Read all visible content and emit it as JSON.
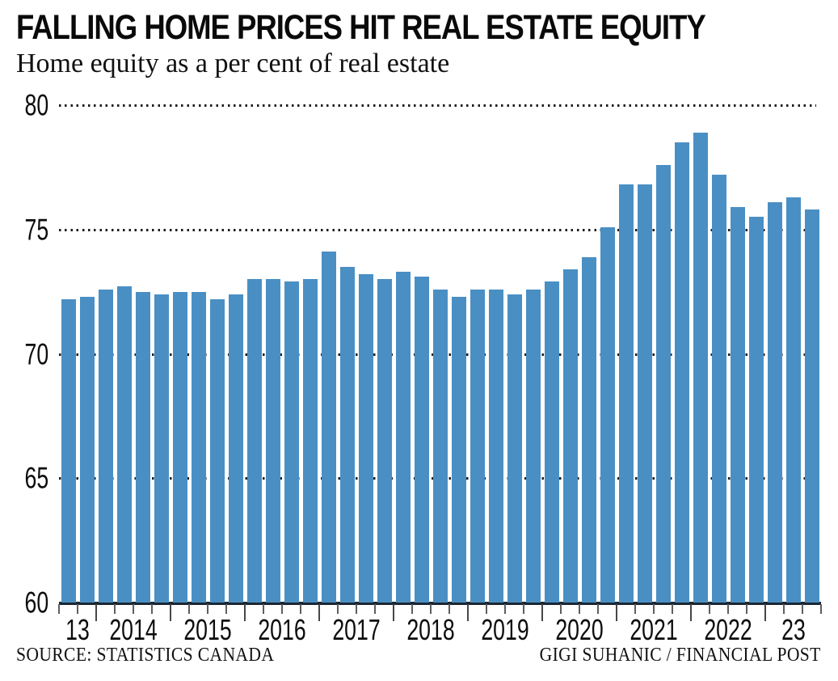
{
  "chart_data": {
    "type": "bar",
    "title": "FALLING HOME PRICES HIT REAL ESTATE EQUITY",
    "subtitle": "Home equity as a per cent of real estate",
    "ylim": [
      60,
      80
    ],
    "yticks": [
      80,
      75,
      70,
      65,
      60
    ],
    "grid": "horizontal-dotted",
    "legend": "none",
    "bar_color": "#4a8fc4",
    "axis_color": "#1b2733",
    "categories": [
      "13",
      "2014",
      "2015",
      "2016",
      "2017",
      "2018",
      "2019",
      "2020",
      "2021",
      "2022",
      "23"
    ],
    "groups": [
      {
        "label": "13",
        "values": [
          72.2,
          72.3
        ]
      },
      {
        "label": "2014",
        "values": [
          72.6,
          72.7,
          72.5,
          72.4
        ]
      },
      {
        "label": "2015",
        "values": [
          72.5,
          72.5,
          72.2,
          72.4
        ]
      },
      {
        "label": "2016",
        "values": [
          73.0,
          73.0,
          72.9,
          73.0
        ]
      },
      {
        "label": "2017",
        "values": [
          74.1,
          73.5,
          73.2,
          73.0
        ]
      },
      {
        "label": "2018",
        "values": [
          73.3,
          73.1,
          72.6,
          72.3
        ]
      },
      {
        "label": "2019",
        "values": [
          72.6,
          72.6,
          72.4,
          72.6
        ]
      },
      {
        "label": "2020",
        "values": [
          72.9,
          73.4,
          73.9,
          75.1
        ]
      },
      {
        "label": "2021",
        "values": [
          76.8,
          76.8,
          77.6,
          78.5
        ]
      },
      {
        "label": "2022",
        "values": [
          78.9,
          77.2,
          75.9,
          75.5
        ]
      },
      {
        "label": "23",
        "values": [
          76.1,
          76.3,
          75.8
        ]
      }
    ],
    "source": "SOURCE: STATISTICS CANADA",
    "credit": "GIGI SUHANIC / FINANCIAL POST"
  }
}
